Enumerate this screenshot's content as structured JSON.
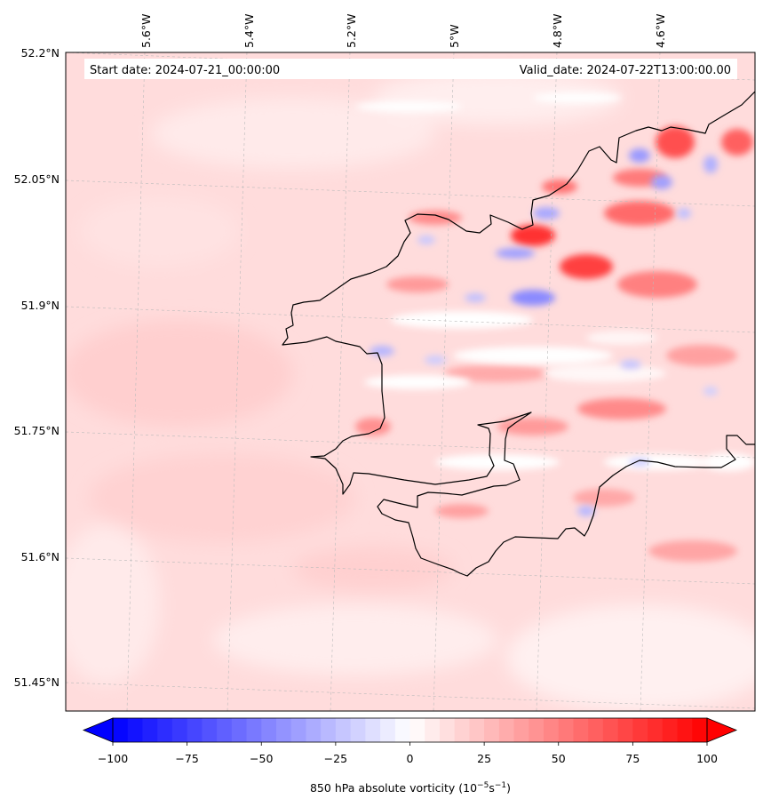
{
  "map": {
    "start_label": "Start date: 2024-07-21_00:00:00",
    "valid_label": "Valid_date: 2024-07-22T13:00:00.00",
    "lon_ticks": [
      "5.6°W",
      "5.4°W",
      "5.2°W",
      "5°W",
      "4.8°W",
      "4.6°W"
    ],
    "lat_ticks": [
      "52.2°N",
      "52.05°N",
      "51.9°N",
      "51.75°N",
      "51.6°N",
      "51.45°N"
    ],
    "colors": {
      "background_field": "#ffd9d9",
      "coastline": "#000000",
      "positive_max": "#ff0000",
      "negative_max": "#0000ff"
    }
  },
  "colorbar": {
    "vmin": -100,
    "vmax": 100,
    "levels": 40,
    "tick_labels": [
      "−100",
      "−75",
      "−50",
      "−25",
      "0",
      "25",
      "50",
      "75",
      "100"
    ],
    "label": "850 hPa absolute vorticity (10",
    "label_exp1": "−5",
    "label_mid": "s",
    "label_exp2": "−1",
    "label_end": ")"
  }
}
